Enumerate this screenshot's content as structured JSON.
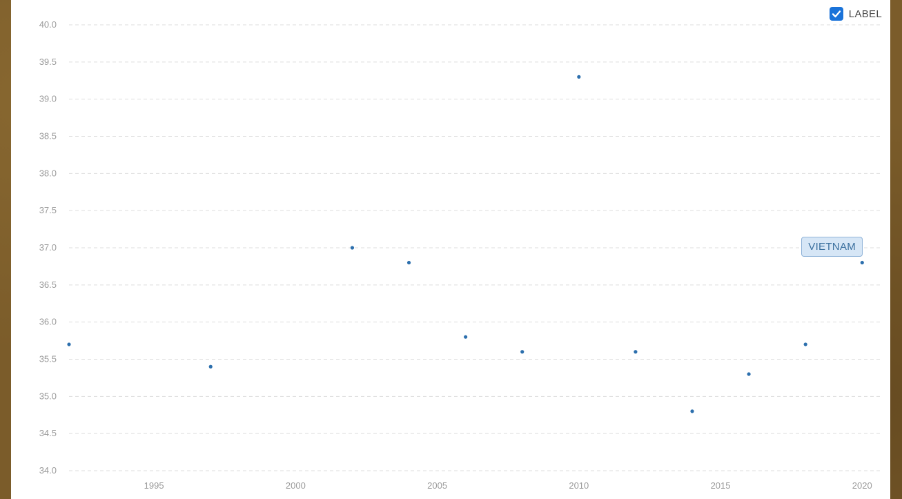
{
  "chart_data": {
    "type": "scatter",
    "x": [
      1992,
      1997,
      2002,
      2004,
      2006,
      2008,
      2010,
      2012,
      2014,
      2016,
      2018,
      2020
    ],
    "y": [
      35.7,
      35.4,
      37.0,
      36.8,
      35.8,
      35.6,
      39.3,
      35.6,
      34.8,
      35.3,
      35.7,
      36.8
    ],
    "xlim": [
      1992,
      2020.7
    ],
    "ylim": [
      34.0,
      40.0
    ],
    "x_ticks": [
      "1995",
      "2000",
      "2005",
      "2010",
      "2015",
      "2020"
    ],
    "y_ticks": [
      "34.0",
      "34.5",
      "35.0",
      "35.5",
      "36.0",
      "36.5",
      "37.0",
      "37.5",
      "38.0",
      "38.5",
      "39.0",
      "39.5",
      "40.0"
    ],
    "grid": "horizontal dashed",
    "point_color": "#2c6fad",
    "point_label": "VIETNAM"
  },
  "controls": {
    "label_toggle": {
      "text": "LABEL",
      "checked": true
    }
  },
  "colors": {
    "accent": "#1a73d9",
    "grid": "#dddddd",
    "tick_text": "#9a9a9a"
  }
}
